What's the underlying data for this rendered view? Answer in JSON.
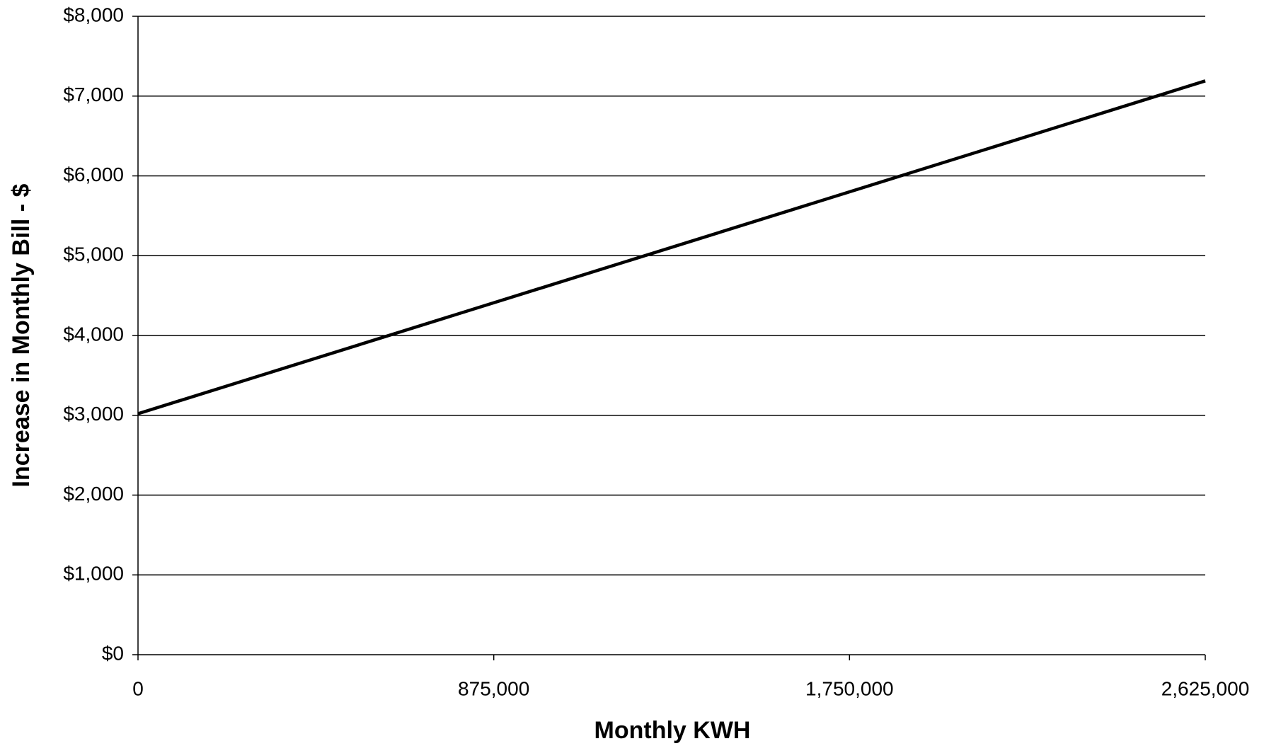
{
  "chart_data": {
    "type": "line",
    "x_label": "Monthly KWH",
    "y_label": "Increase in Monthly Bill - $",
    "x": [
      0,
      2625000
    ],
    "series": [
      {
        "name": "Increase in Monthly Bill",
        "color": "#000000",
        "values": [
          3020,
          7190
        ]
      }
    ],
    "xlim": [
      0,
      2625000
    ],
    "xticks": [
      0,
      {
        "value": 875000,
        "label": "875,000"
      },
      {
        "value": 1750000,
        "label": "1,750,000"
      },
      {
        "value": 2625000,
        "label": "2,625,000"
      }
    ],
    "ylim": [
      0,
      8000
    ],
    "yticks": [
      {
        "value": 0,
        "label": "$0"
      },
      {
        "value": 1000,
        "label": "$1,000"
      },
      {
        "value": 2000,
        "label": "$2,000"
      },
      {
        "value": 3000,
        "label": "$3,000"
      },
      {
        "value": 4000,
        "label": "$4,000"
      },
      {
        "value": 5000,
        "label": "$5,000"
      },
      {
        "value": 6000,
        "label": "$6,000"
      },
      {
        "value": 7000,
        "label": "$7,000"
      },
      {
        "value": 8000,
        "label": "$8,000"
      }
    ],
    "grid": true
  }
}
